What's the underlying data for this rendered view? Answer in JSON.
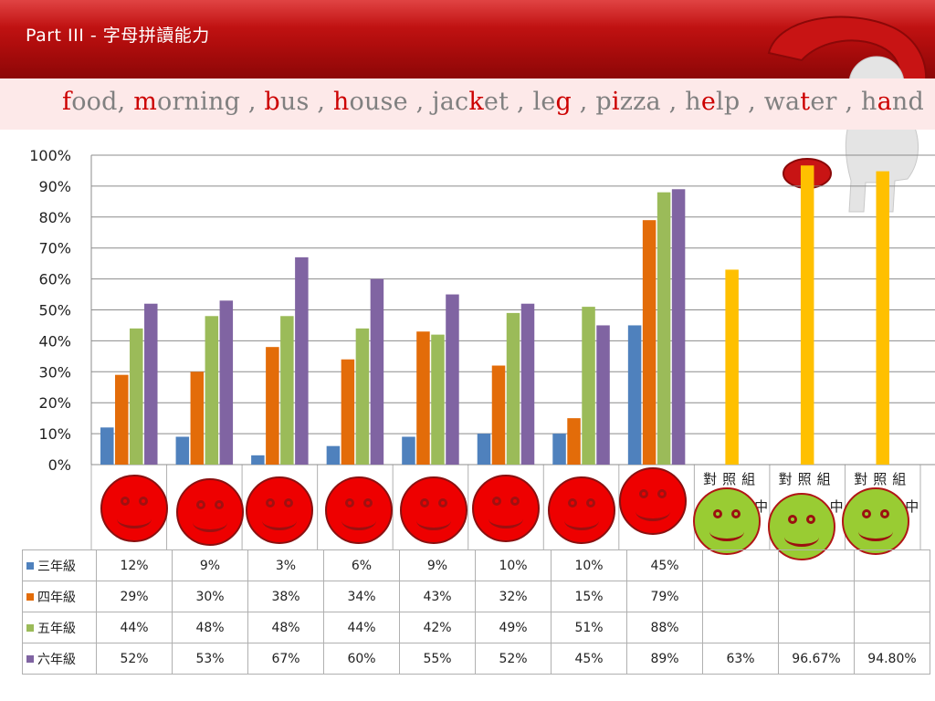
{
  "slide": {
    "title": "Part III  - 字母拼讀能力"
  },
  "words_line": [
    {
      "parts": [
        {
          "t": "f",
          "hl": true
        },
        {
          "t": "ood",
          "hl": false
        }
      ]
    },
    {
      "parts": [
        {
          "t": "m",
          "hl": true
        },
        {
          "t": "orning",
          "hl": false
        }
      ]
    },
    {
      "parts": [
        {
          "t": "b",
          "hl": true
        },
        {
          "t": "us",
          "hl": false
        }
      ]
    },
    {
      "parts": [
        {
          "t": "h",
          "hl": true
        },
        {
          "t": "ouse",
          "hl": false
        }
      ]
    },
    {
      "parts": [
        {
          "t": "jac",
          "hl": false
        },
        {
          "t": "k",
          "hl": true
        },
        {
          "t": "et",
          "hl": false
        }
      ]
    },
    {
      "parts": [
        {
          "t": "le",
          "hl": false
        },
        {
          "t": "g",
          "hl": true
        }
      ]
    },
    {
      "parts": [
        {
          "t": "p",
          "hl": false
        },
        {
          "t": "i",
          "hl": true
        },
        {
          "t": "zza",
          "hl": false
        }
      ]
    },
    {
      "parts": [
        {
          "t": "h",
          "hl": false
        },
        {
          "t": "e",
          "hl": true
        },
        {
          "t": "lp",
          "hl": false
        }
      ]
    },
    {
      "parts": [
        {
          "t": "wa",
          "hl": false
        },
        {
          "t": "t",
          "hl": true
        },
        {
          "t": "er",
          "hl": false
        }
      ]
    },
    {
      "parts": [
        {
          "t": "h",
          "hl": false
        },
        {
          "t": "a",
          "hl": true
        },
        {
          "t": "nd",
          "hl": false
        }
      ]
    }
  ],
  "words_separators": [
    ",",
    " ,",
    " ,",
    " ,",
    " ,",
    " ,",
    " ,",
    " ,",
    " ,"
  ],
  "chart_data": {
    "type": "bar",
    "ylim": [
      0,
      1
    ],
    "yticks": [
      "0%",
      "10%",
      "20%",
      "30%",
      "40%",
      "50%",
      "60%",
      "70%",
      "80%",
      "90%",
      "100%"
    ],
    "category_count": 11,
    "control_label": "對照組",
    "control_label_sub": [
      "中",
      "中",
      "中"
    ],
    "control_columns": [
      8,
      9,
      10
    ],
    "series": [
      {
        "name": "三年級",
        "color": "#4f81bd",
        "values": [
          0.12,
          0.09,
          0.03,
          0.06,
          0.09,
          0.1,
          0.1,
          0.45,
          null,
          null,
          null
        ],
        "labels": [
          "12%",
          "9%",
          "3%",
          "6%",
          "9%",
          "10%",
          "10%",
          "45%",
          "",
          "",
          ""
        ]
      },
      {
        "name": "四年級",
        "color": "#e36c09",
        "values": [
          0.29,
          0.3,
          0.38,
          0.34,
          0.43,
          0.32,
          0.15,
          0.79,
          null,
          null,
          null
        ],
        "labels": [
          "29%",
          "30%",
          "38%",
          "34%",
          "43%",
          "32%",
          "15%",
          "79%",
          "",
          "",
          ""
        ]
      },
      {
        "name": "五年級",
        "color": "#9bbb59",
        "values": [
          0.44,
          0.48,
          0.48,
          0.44,
          0.42,
          0.49,
          0.51,
          0.88,
          null,
          null,
          null
        ],
        "labels": [
          "44%",
          "48%",
          "48%",
          "44%",
          "42%",
          "49%",
          "51%",
          "88%",
          "",
          "",
          ""
        ]
      },
      {
        "name": "六年級",
        "color": "#8064a2",
        "values": [
          0.52,
          0.53,
          0.67,
          0.6,
          0.55,
          0.52,
          0.45,
          0.89,
          0.63,
          0.9667,
          0.948
        ],
        "labels": [
          "52%",
          "53%",
          "67%",
          "60%",
          "55%",
          "52%",
          "45%",
          "89%",
          "63%",
          "96.67%",
          "94.80%"
        ]
      }
    ],
    "control_bar_color": "#ffc000",
    "faces": [
      "red",
      "red",
      "red",
      "red",
      "red",
      "red",
      "red",
      "red",
      "green",
      "green",
      "green"
    ],
    "grid": true,
    "legend": "table"
  }
}
